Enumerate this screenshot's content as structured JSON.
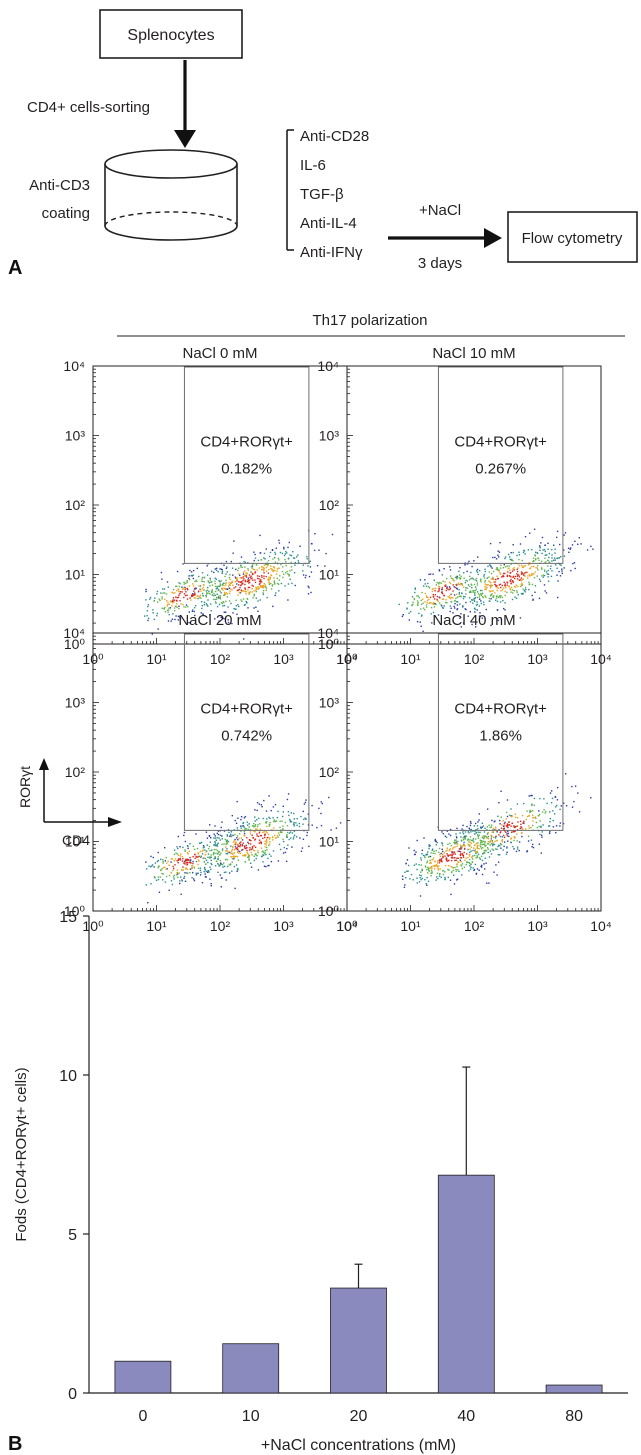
{
  "panel_a": {
    "letter": "A",
    "splenocytes": "Splenocytes",
    "sorting": "CD4+ cells-sorting",
    "coating_line1": "Anti-CD3",
    "coating_line2": "coating",
    "reagents": [
      "Anti-CD28",
      "IL-6",
      "TGF-β",
      "Anti-IL-4",
      "Anti-IFNγ"
    ],
    "nacl_label": "+NaCl",
    "days_label": "3 days",
    "flow_box": "Flow cytometry"
  },
  "panel_b": {
    "letter": "B",
    "group_header": "Th17 polarization",
    "plots": [
      {
        "title": "NaCl 0 mM",
        "gate_label": "CD4+RORγt+",
        "percent": "0.182%"
      },
      {
        "title": "NaCl 10 mM",
        "gate_label": "CD4+RORγt+",
        "percent": "0.267%"
      },
      {
        "title": "NaCl 20 mM",
        "gate_label": "CD4+RORγt+",
        "percent": "0.742%"
      },
      {
        "title": "NaCl 40 mM",
        "gate_label": "CD4+RORγt+",
        "percent": "1.86%"
      }
    ],
    "flow_ticks": [
      "10⁰",
      "10¹",
      "10²",
      "10³",
      "10⁴"
    ],
    "y_axis_label": "RORγt",
    "x_axis_label": "CD4"
  },
  "chart_data": {
    "type": "bar",
    "categories": [
      "0",
      "10",
      "20",
      "40",
      "80"
    ],
    "values": [
      1.0,
      1.55,
      3.3,
      6.85,
      0.25
    ],
    "errors": [
      0,
      0,
      0.75,
      3.4,
      0
    ],
    "xlabel": "+NaCl concentrations (mM)",
    "ylabel": "Fods (CD4+RORγt+ cells)",
    "ylim": [
      0,
      15
    ],
    "yticks": [
      0,
      5,
      10,
      15
    ],
    "bar_color": "#8a8abe"
  }
}
